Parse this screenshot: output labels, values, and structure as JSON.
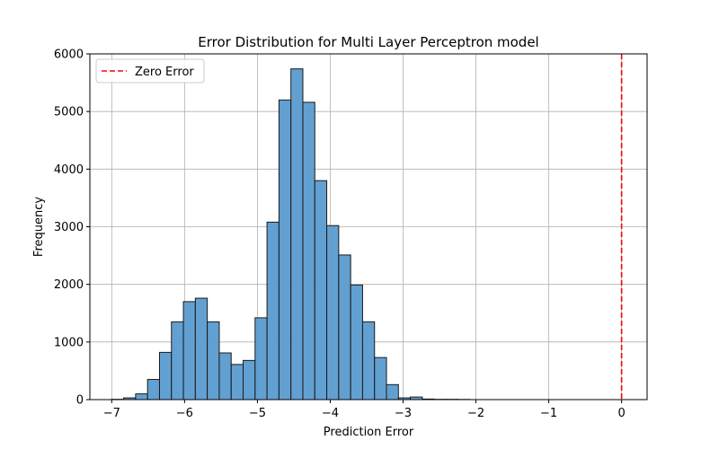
{
  "chart_data": {
    "type": "bar",
    "title": "Error Distribution for Multi Layer Perceptron model",
    "xlabel": "Prediction Error",
    "ylabel": "Frequency",
    "xlim": [
      -7.3,
      0.35
    ],
    "ylim": [
      0,
      6000
    ],
    "xticks": [
      -7,
      -6,
      -5,
      -4,
      -3,
      -2,
      -1,
      0
    ],
    "yticks": [
      0,
      1000,
      2000,
      3000,
      4000,
      5000,
      6000
    ],
    "xtick_labels": [
      "−7",
      "−6",
      "−5",
      "−4",
      "−3",
      "−2",
      "−1",
      "0"
    ],
    "ytick_labels": [
      "0",
      "1000",
      "2000",
      "3000",
      "4000",
      "5000",
      "6000"
    ],
    "grid": true,
    "legend": {
      "position": "upper-left",
      "entries": [
        "Zero Error"
      ]
    },
    "bar_color": "#5b9bd0",
    "bar_edge": "#1a1a1a",
    "reference_line": {
      "x": 0,
      "label": "Zero Error",
      "color": "#ff0000",
      "style": "dashed"
    },
    "bin_edges": [
      -7.0,
      -6.836,
      -6.672,
      -6.508,
      -6.344,
      -6.18,
      -6.016,
      -5.852,
      -5.688,
      -5.524,
      -5.36,
      -5.196,
      -5.032,
      -4.868,
      -4.704,
      -4.54,
      -4.376,
      -4.212,
      -4.048,
      -3.884,
      -3.72,
      -3.556,
      -3.392,
      -3.228,
      -3.064,
      -2.9,
      -2.736,
      -2.572,
      -2.408,
      -2.244,
      -2.08
    ],
    "values": [
      5,
      30,
      100,
      350,
      820,
      1350,
      1700,
      1760,
      1350,
      810,
      610,
      680,
      1420,
      3080,
      5200,
      5740,
      5160,
      3800,
      3020,
      2510,
      1990,
      1350,
      730,
      260,
      30,
      45,
      10,
      5,
      5,
      3
    ]
  }
}
